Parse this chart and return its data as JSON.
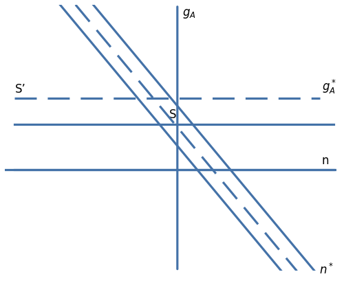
{
  "line_color": "#4472a8",
  "bg_color": "#ffffff",
  "xlim": [
    0,
    10
  ],
  "ylim": [
    0,
    10
  ],
  "axis_x": 5.2,
  "axis_y": 3.8,
  "horiz_solid_S_y": 5.5,
  "horiz_solid_n_y": 3.8,
  "horiz_dashed_y": 6.5,
  "diag_slope": -1.5,
  "diag_solid1_intercept": 12.5,
  "diag_solid2_intercept": 14.0,
  "diag_dashed_intercept": 13.2,
  "lw_solid": 2.3,
  "lw_axis": 2.3,
  "lw_dashed": 2.3,
  "dash_pattern": [
    10,
    5
  ],
  "label_fs": 12,
  "label_color": "black",
  "gA_label": "$g_A$",
  "gAstar_label": "$g^*_A$",
  "n_label": "n",
  "nstar_label": "$n^*$",
  "S_label": "S",
  "Sprime_label": "S’"
}
